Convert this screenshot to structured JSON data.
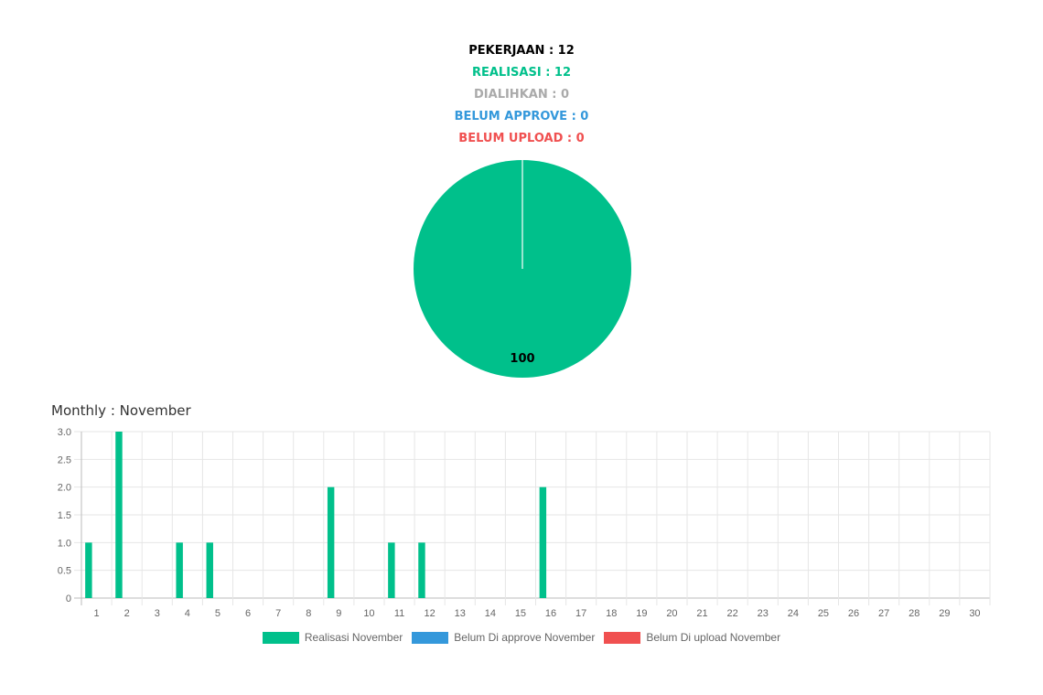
{
  "summary": {
    "pekerjaan": "PEKERJAAN : 12",
    "realisasi": "REALISASI : 12",
    "dialihkan": "DIALIHKAN : 0",
    "belum_approve": "BELUM APPROVE : 0",
    "belum_upload": "BELUM UPLOAD : 0"
  },
  "colors": {
    "pekerjaan": "#000000",
    "realisasi": "#00c08b",
    "dialihkan": "#aaaaaa",
    "belum_approve": "#3498db",
    "belum_upload": "#f05050"
  },
  "monthly_title": "Monthly : November",
  "chart_data": [
    {
      "type": "pie",
      "slices": [
        {
          "value": 100,
          "color": "#00c08b"
        }
      ],
      "data_label": "100"
    },
    {
      "type": "bar",
      "categories": [
        "1",
        "2",
        "3",
        "4",
        "5",
        "6",
        "7",
        "8",
        "9",
        "10",
        "11",
        "12",
        "13",
        "14",
        "15",
        "16",
        "17",
        "18",
        "19",
        "20",
        "21",
        "22",
        "23",
        "24",
        "25",
        "26",
        "27",
        "28",
        "29",
        "30"
      ],
      "series": [
        {
          "name": "Realisasi November",
          "color": "#00c08b",
          "values": [
            1,
            3,
            0,
            1,
            1,
            0,
            0,
            0,
            2,
            0,
            1,
            1,
            0,
            0,
            0,
            2,
            0,
            0,
            0,
            0,
            0,
            0,
            0,
            0,
            0,
            0,
            0,
            0,
            0,
            0
          ]
        },
        {
          "name": "Belum Di approve November",
          "color": "#3498db",
          "values": [
            0,
            0,
            0,
            0,
            0,
            0,
            0,
            0,
            0,
            0,
            0,
            0,
            0,
            0,
            0,
            0,
            0,
            0,
            0,
            0,
            0,
            0,
            0,
            0,
            0,
            0,
            0,
            0,
            0,
            0
          ]
        },
        {
          "name": "Belum Di upload November",
          "color": "#f05050",
          "values": [
            0,
            0,
            0,
            0,
            0,
            0,
            0,
            0,
            0,
            0,
            0,
            0,
            0,
            0,
            0,
            0,
            0,
            0,
            0,
            0,
            0,
            0,
            0,
            0,
            0,
            0,
            0,
            0,
            0,
            0
          ]
        }
      ],
      "yticks": [
        "0",
        "0.5",
        "1.0",
        "1.5",
        "2.0",
        "2.5",
        "3.0"
      ],
      "ylim": [
        0,
        3
      ],
      "grid": true,
      "legend": "bottom"
    }
  ]
}
